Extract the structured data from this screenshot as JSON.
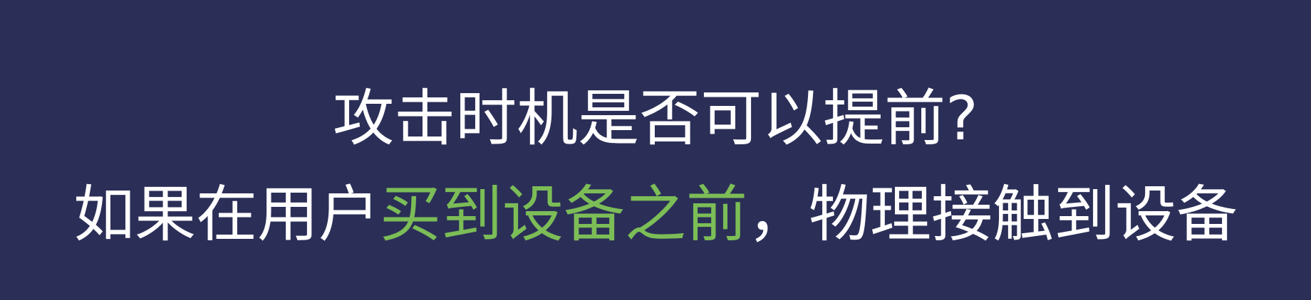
{
  "slide": {
    "heading": "攻击时机是否可以提前?",
    "subline": {
      "before": "如果在用户",
      "highlight": "买到设备之前",
      "after": "，物理接触到设备"
    }
  },
  "colors": {
    "background": "#2b2f57",
    "text": "#ffffff",
    "highlight": "#7cbd57"
  }
}
